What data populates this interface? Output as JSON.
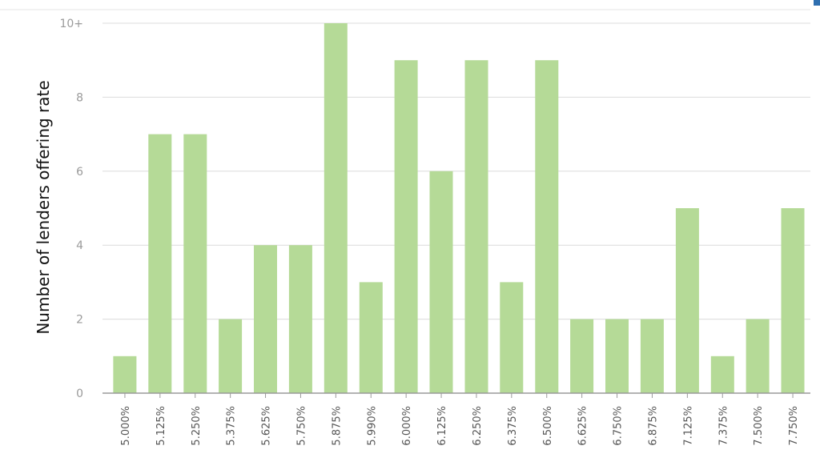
{
  "chart_data": {
    "type": "bar",
    "ylabel": "Number of lenders offering rate",
    "ylim": [
      0,
      10
    ],
    "yticks": [
      {
        "value": 0,
        "label": "0"
      },
      {
        "value": 2,
        "label": "2"
      },
      {
        "value": 4,
        "label": "4"
      },
      {
        "value": 6,
        "label": "6"
      },
      {
        "value": 8,
        "label": "8"
      },
      {
        "value": 10,
        "label": "10+"
      }
    ],
    "categories": [
      "5.000%",
      "5.125%",
      "5.250%",
      "5.375%",
      "5.625%",
      "5.750%",
      "5.875%",
      "5.990%",
      "6.000%",
      "6.125%",
      "6.250%",
      "6.375%",
      "6.500%",
      "6.625%",
      "6.750%",
      "6.875%",
      "7.125%",
      "7.375%",
      "7.500%",
      "7.750%"
    ],
    "values": [
      1,
      7,
      7,
      2,
      4,
      4,
      10,
      3,
      9,
      6,
      9,
      3,
      9,
      2,
      2,
      2,
      5,
      1,
      2,
      5
    ],
    "bar_color": "#b5da97",
    "grid": true
  }
}
